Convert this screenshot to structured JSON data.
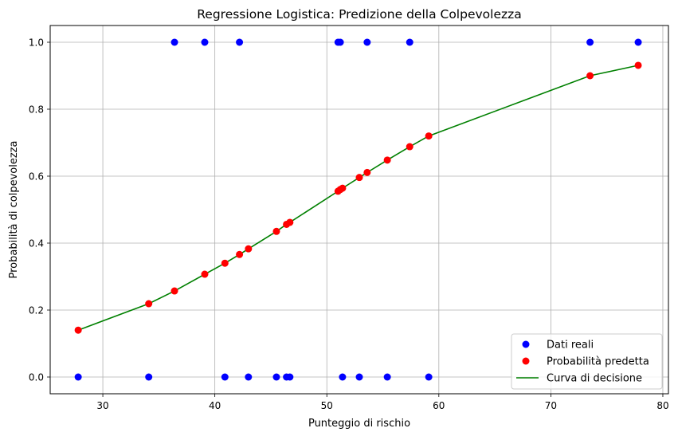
{
  "chart_data": {
    "type": "scatter",
    "title": "Regressione Logistica: Predizione della Colpevolezza",
    "xlabel": "Punteggio di rischio",
    "ylabel": "Probabilità di colpevolezza",
    "xlim": [
      25.3,
      80.5
    ],
    "ylim": [
      -0.05,
      1.05
    ],
    "xticks": [
      30,
      40,
      50,
      60,
      70,
      80
    ],
    "yticks": [
      0.0,
      0.2,
      0.4,
      0.6,
      0.8,
      1.0
    ],
    "grid": true,
    "legend_position": "bottom-right",
    "series": [
      {
        "name": "Dati reali",
        "kind": "scatter",
        "color": "#0000ff",
        "x": [
          27.8,
          34.1,
          36.4,
          39.1,
          40.9,
          42.2,
          43.0,
          45.5,
          46.4,
          46.7,
          51.0,
          51.2,
          51.4,
          52.9,
          53.6,
          55.4,
          57.4,
          59.1,
          73.5,
          77.8
        ],
        "y": [
          0,
          0,
          1,
          1,
          0,
          1,
          0,
          0,
          0,
          0,
          1,
          1,
          0,
          0,
          1,
          0,
          1,
          0,
          1,
          1
        ]
      },
      {
        "name": "Probabilità predetta",
        "kind": "scatter",
        "color": "#ff0000",
        "x": [
          27.8,
          34.1,
          36.4,
          39.1,
          40.9,
          42.2,
          43.0,
          45.5,
          46.4,
          46.7,
          51.0,
          51.2,
          51.4,
          52.9,
          53.6,
          55.4,
          57.4,
          59.1,
          73.5,
          77.8
        ],
        "y": [
          0.14,
          0.219,
          0.257,
          0.307,
          0.34,
          0.366,
          0.383,
          0.435,
          0.456,
          0.462,
          0.555,
          0.56,
          0.564,
          0.596,
          0.611,
          0.648,
          0.688,
          0.72,
          0.9,
          0.931
        ]
      },
      {
        "name": "Curva di decisione",
        "kind": "line",
        "color": "#008000",
        "x": [
          27.8,
          34.1,
          36.4,
          39.1,
          40.9,
          42.2,
          43.0,
          45.5,
          46.4,
          46.7,
          51.0,
          51.2,
          51.4,
          52.9,
          53.6,
          55.4,
          57.4,
          59.1,
          73.5,
          77.8
        ],
        "y": [
          0.14,
          0.219,
          0.257,
          0.307,
          0.34,
          0.366,
          0.383,
          0.435,
          0.456,
          0.462,
          0.555,
          0.56,
          0.564,
          0.596,
          0.611,
          0.648,
          0.688,
          0.72,
          0.9,
          0.931
        ]
      }
    ]
  }
}
